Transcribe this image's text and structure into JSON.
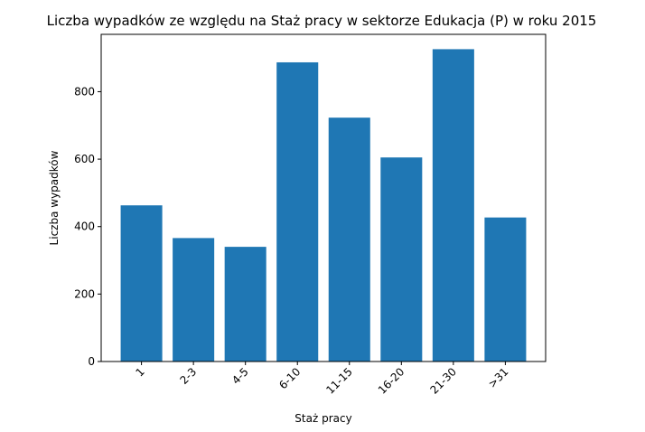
{
  "chart_data": {
    "type": "bar",
    "title": "Liczba wypadków ze względu na Staż pracy w sektorze Edukacja  (P)   w roku 2015",
    "xlabel": "Staż pracy",
    "ylabel": "Liczba wypadków",
    "categories": [
      "1",
      "2-3",
      "4-5",
      "6-10",
      "11-15",
      "16-20",
      "21-30",
      ">31"
    ],
    "values": [
      463,
      366,
      340,
      887,
      723,
      605,
      926,
      427
    ],
    "ylim": [
      0,
      970
    ],
    "yticks": [
      0,
      200,
      400,
      600,
      800
    ],
    "grid": false,
    "bar_color": "#1f77b4"
  }
}
